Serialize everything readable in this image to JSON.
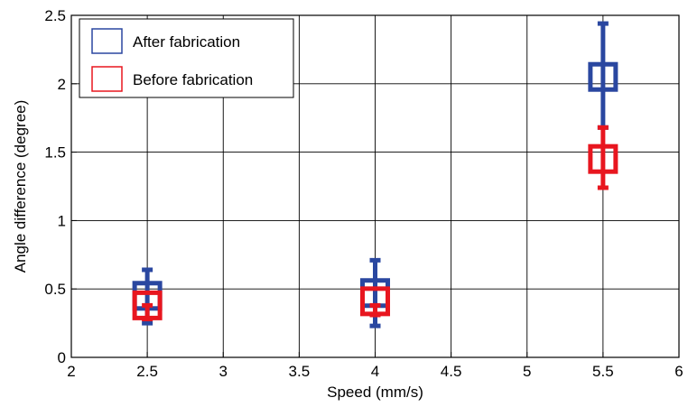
{
  "chart_data": {
    "type": "scatter",
    "xlabel": "Speed (mm/s)",
    "ylabel": "Angle difference (degree)",
    "xlim": [
      2,
      6
    ],
    "ylim": [
      0,
      2.5
    ],
    "xticks": [
      2,
      2.5,
      3,
      3.5,
      4,
      4.5,
      5,
      5.5,
      6
    ],
    "xtick_labels": [
      "2",
      "2.5",
      "3",
      "3.5",
      "4",
      "4.5",
      "5",
      "5.5",
      "6"
    ],
    "yticks": [
      0,
      0.5,
      1,
      1.5,
      2,
      2.5
    ],
    "ytick_labels": [
      "0",
      "0.5",
      "1",
      "1.5",
      "2",
      "2.5"
    ],
    "grid": true,
    "legend_position": "top-left",
    "series": [
      {
        "name": "After fabrication",
        "color": "#2a47a0",
        "marker": "square",
        "x": [
          2.5,
          4,
          5.5
        ],
        "y": [
          0.45,
          0.47,
          2.05
        ],
        "err_low": [
          0.25,
          0.23,
          1.68
        ],
        "err_high": [
          0.64,
          0.71,
          2.44
        ]
      },
      {
        "name": "Before fabrication",
        "color": "#e8161f",
        "marker": "square",
        "x": [
          2.5,
          4,
          5.5
        ],
        "y": [
          0.38,
          0.41,
          1.45
        ],
        "err_low": [
          0.28,
          0.31,
          1.24
        ],
        "err_high": [
          0.38,
          0.38,
          1.68
        ]
      }
    ]
  }
}
